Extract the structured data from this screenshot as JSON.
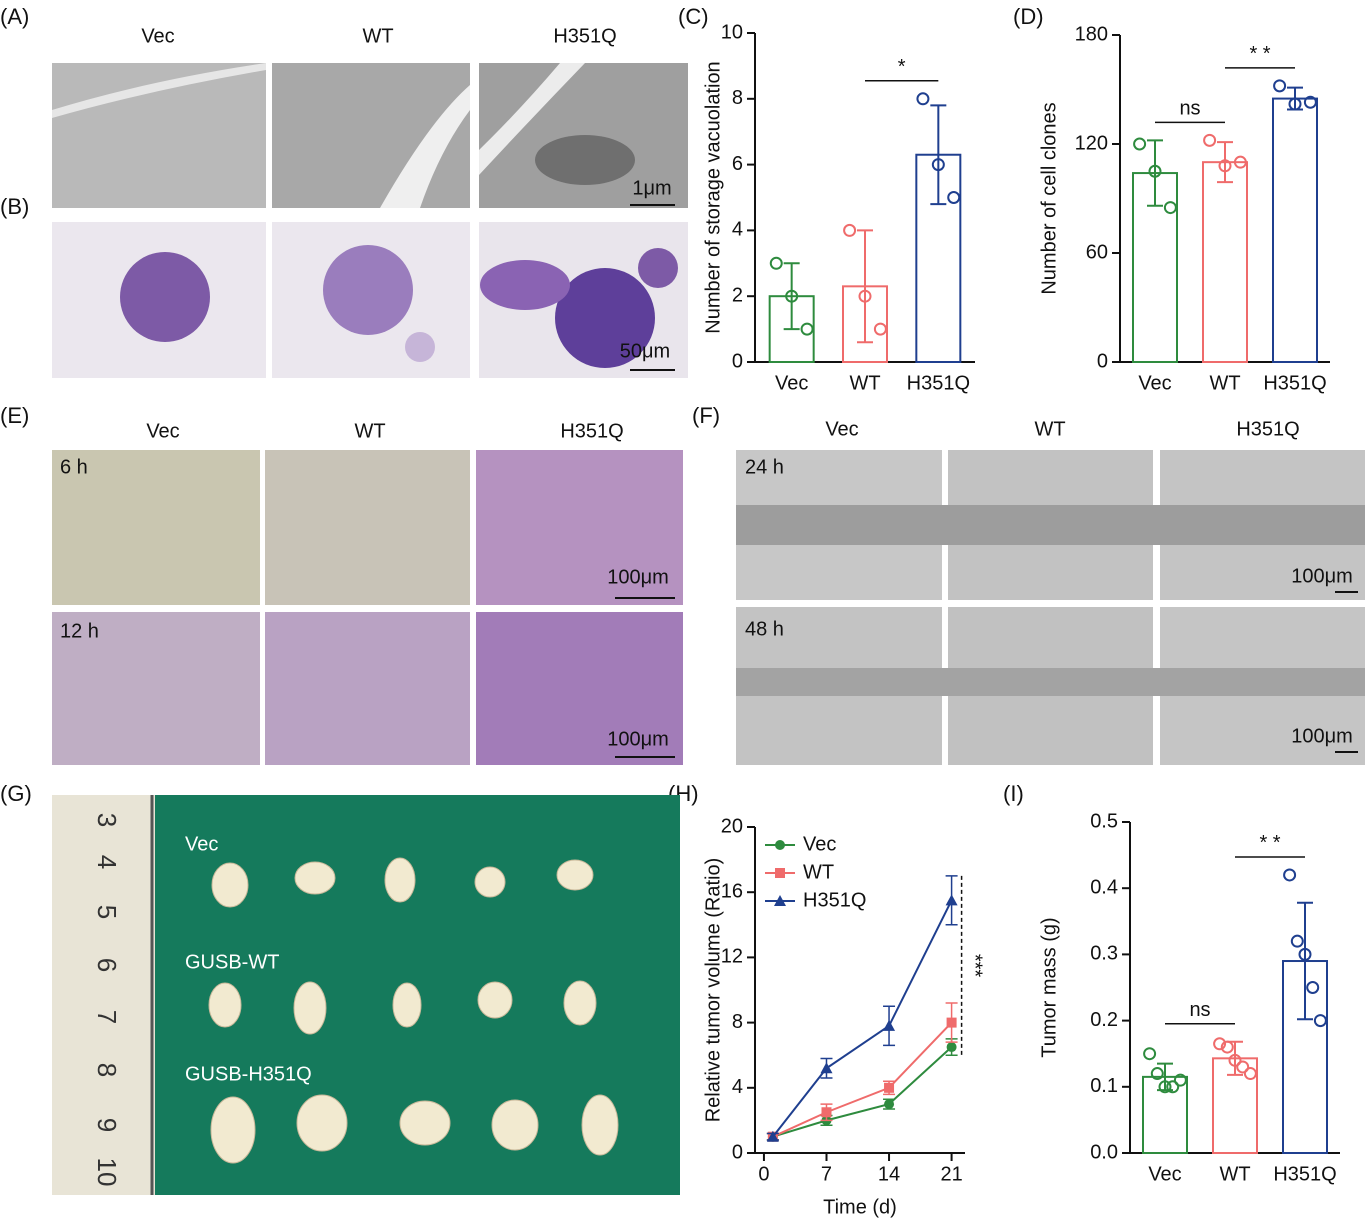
{
  "panel_labels": [
    "(A)",
    "(B)",
    "(C)",
    "(D)",
    "(E)",
    "(F)",
    "(G)",
    "(H)",
    "(I)"
  ],
  "panels": {
    "A": {
      "columns": [
        "Vec",
        "WT",
        "H351Q"
      ],
      "scale_bar": "1μm"
    },
    "B": {
      "scale_bar": "50μm"
    },
    "E": {
      "columns": [
        "Vec",
        "WT",
        "H351Q"
      ],
      "rows": [
        "6 h",
        "12 h"
      ],
      "scale_bars": [
        "100μm",
        "100μm"
      ]
    },
    "F": {
      "columns": [
        "Vec",
        "WT",
        "H351Q"
      ],
      "rows": [
        "24 h",
        "48 h"
      ],
      "scale_bars": [
        "100μm",
        "100μm"
      ]
    },
    "G": {
      "rows": [
        "Vec",
        "GUSB-WT",
        "GUSB-H351Q"
      ],
      "ruler": [
        "3",
        "4",
        "5",
        "6",
        "7",
        "8",
        "9",
        "10"
      ]
    }
  },
  "chart_data": [
    {
      "type": "bar",
      "ylabel": "Number of storage vacuolation",
      "categories": [
        "Vec",
        "WT",
        "H351Q"
      ],
      "colors": [
        "#2e8b3e",
        "#ef6b6b",
        "#1f3f8f"
      ],
      "values": [
        2,
        2.3,
        6.3
      ],
      "errors": [
        1,
        1.7,
        1.5
      ],
      "points": [
        [
          3,
          2,
          1
        ],
        [
          4,
          2,
          1
        ],
        [
          8,
          6,
          5
        ]
      ],
      "ylim": [
        0,
        10
      ],
      "yticks": [
        0,
        2,
        4,
        6,
        8,
        10
      ],
      "annotations": [
        {
          "text": "*",
          "pair": [
            1,
            2
          ]
        }
      ]
    },
    {
      "type": "bar",
      "ylabel": "Number of cell clones",
      "categories": [
        "Vec",
        "WT",
        "H351Q"
      ],
      "colors": [
        "#2e8b3e",
        "#ef6b6b",
        "#1f3f8f"
      ],
      "values": [
        104,
        110,
        145
      ],
      "errors": [
        18,
        11,
        6
      ],
      "points": [
        [
          120,
          105,
          85
        ],
        [
          122,
          108,
          110
        ],
        [
          152,
          142,
          143
        ]
      ],
      "ylim": [
        0,
        180
      ],
      "yticks": [
        0,
        60,
        120,
        180
      ],
      "annotations": [
        {
          "text": "ns",
          "pair": [
            0,
            1
          ]
        },
        {
          "text": "* *",
          "pair": [
            1,
            2
          ]
        }
      ]
    },
    {
      "type": "line",
      "xlabel": "Time (d)",
      "ylabel": "Relative tumor volume (Ratio)",
      "x": [
        1,
        7,
        14,
        21
      ],
      "series": [
        {
          "name": "Vec",
          "color": "#2e8b3e",
          "marker": "circle",
          "values": [
            1,
            2,
            3,
            6.5
          ],
          "errors": [
            0.2,
            0.3,
            0.3,
            0.5
          ]
        },
        {
          "name": "WT",
          "color": "#ef6b6b",
          "marker": "square",
          "values": [
            1,
            2.5,
            4,
            8
          ],
          "errors": [
            0.2,
            0.5,
            0.4,
            1.2
          ]
        },
        {
          "name": "H351Q",
          "color": "#1f3f8f",
          "marker": "triangle",
          "values": [
            1,
            5.2,
            7.8,
            15.5
          ],
          "errors": [
            0.2,
            0.6,
            1.2,
            1.5
          ]
        }
      ],
      "xlim": [
        -1,
        22.5
      ],
      "xticks": [
        0,
        7,
        14,
        21
      ],
      "ylim": [
        0,
        20
      ],
      "yticks": [
        0,
        4,
        8,
        12,
        16,
        20
      ],
      "legend": "upper left",
      "annotations": [
        {
          "text": "***"
        }
      ]
    },
    {
      "type": "bar",
      "ylabel": "Tumor mass (g)",
      "categories": [
        "Vec",
        "WT",
        "H351Q"
      ],
      "colors": [
        "#2e8b3e",
        "#ef6b6b",
        "#1f3f8f"
      ],
      "values": [
        0.115,
        0.143,
        0.29
      ],
      "errors": [
        0.02,
        0.025,
        0.088
      ],
      "points": [
        [
          0.15,
          0.12,
          0.1,
          0.1,
          0.11
        ],
        [
          0.165,
          0.16,
          0.14,
          0.13,
          0.12
        ],
        [
          0.42,
          0.32,
          0.3,
          0.25,
          0.2
        ]
      ],
      "ylim": [
        0,
        0.5
      ],
      "yticks": [
        {
          "value": 0,
          "label": "0.0"
        },
        0.1,
        0.2,
        0.3,
        0.4,
        0.5
      ],
      "annotations": [
        {
          "text": "ns",
          "pair": [
            0,
            1
          ]
        },
        {
          "text": "* *",
          "pair": [
            1,
            2
          ]
        }
      ]
    }
  ]
}
